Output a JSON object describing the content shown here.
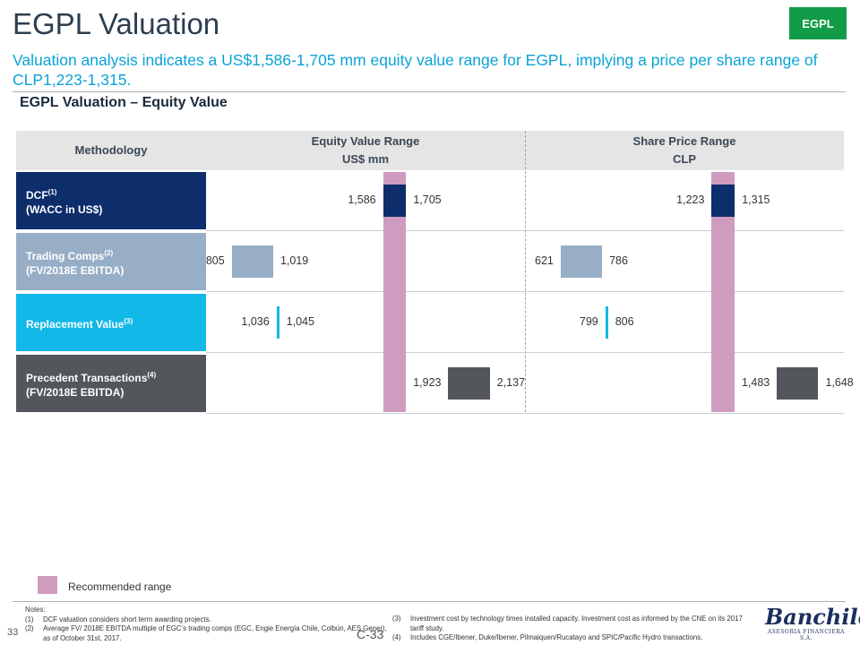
{
  "header": {
    "title": "EGPL Valuation",
    "tag": "EGPL",
    "subtitle": "Valuation analysis indicates a US$1,586-1,705 mm equity value range for EGPL, implying a price per share range of CLP1,223-1,315.",
    "section_title": "EGPL Valuation – Equity Value"
  },
  "table": {
    "methodology_header": "Methodology",
    "equity_header_1": "Equity Value Range",
    "equity_header_2": "US$ mm",
    "share_header_1": "Share Price Range",
    "share_header_2": "CLP"
  },
  "rows": [
    {
      "line1": "DCF",
      "sup": "(1)",
      "line2": "(WACC in US$)",
      "color": "#0d2d6b"
    },
    {
      "line1": "Trading Comps",
      "sup": "(2)",
      "line2": "(FV/2018E EBITDA)",
      "color": "#97aec6"
    },
    {
      "line1": "Replacement Value",
      "sup": "(3)",
      "line2": "",
      "color": "#12b8e8"
    },
    {
      "line1": "Precedent Transactions",
      "sup": "(4)",
      "line2": "(FV/2018E EBITDA)",
      "color": "#53575c"
    }
  ],
  "chart_data": [
    {
      "type": "bar",
      "subtype": "floating-range",
      "title": "Equity Value Range",
      "unit": "US$ mm",
      "categories": [
        "DCF (WACC in US$)",
        "Trading Comps (FV/2018E EBITDA)",
        "Replacement Value",
        "Precedent Transactions (FV/2018E EBITDA)"
      ],
      "low": [
        1586,
        805,
        1036,
        1923
      ],
      "high": [
        1705,
        1019,
        1045,
        2137
      ],
      "low_labels": [
        "1,586",
        "805",
        "1,036",
        "1,923"
      ],
      "high_labels": [
        "1,705",
        "1,019",
        "1,045",
        "2,137"
      ],
      "recommended_range": [
        1586,
        1705
      ],
      "colors": [
        "#0d2d6b",
        "#97aec6",
        "#12b8e8",
        "#53575c"
      ]
    },
    {
      "type": "bar",
      "subtype": "floating-range",
      "title": "Share Price Range",
      "unit": "CLP",
      "categories": [
        "DCF (WACC in US$)",
        "Trading Comps (FV/2018E EBITDA)",
        "Replacement Value",
        "Precedent Transactions (FV/2018E EBITDA)"
      ],
      "low": [
        1223,
        621,
        799,
        1483
      ],
      "high": [
        1315,
        786,
        806,
        1648
      ],
      "low_labels": [
        "1,223",
        "621",
        "799",
        "1,483"
      ],
      "high_labels": [
        "1,315",
        "786",
        "806",
        "1,648"
      ],
      "recommended_range": [
        1223,
        1315
      ],
      "colors": [
        "#0d2d6b",
        "#97aec6",
        "#12b8e8",
        "#53575c"
      ]
    }
  ],
  "legend": {
    "label": "Recommended range",
    "color": "#cf9cbf"
  },
  "notes": {
    "title": "Notes:",
    "items": [
      {
        "num": "(1)",
        "text": "DCF valuation considers short term awarding projects."
      },
      {
        "num": "(2)",
        "text": "Average FV/ 2018E EBITDA multiple of EGC’s trading comps (EGC, Engie Energía Chile, Colbún, AES Gener), as of October 31st, 2017."
      },
      {
        "num": "(3)",
        "text": "Investment cost by technology times installed capacity. Investment cost as informed by the CNE on its 2017 tariff study."
      },
      {
        "num": "(4)",
        "text": "Includes CGE/Ibener, Duke/Ibener, Pilmaiquen/Rucatayo and SPIC/Pacific Hydro transactions."
      }
    ]
  },
  "footer": {
    "page_number": "33",
    "page_code": "C-33",
    "logo_text": "Banchile",
    "logo_subtext": "ASESORIA FINANCIERA S.A."
  }
}
